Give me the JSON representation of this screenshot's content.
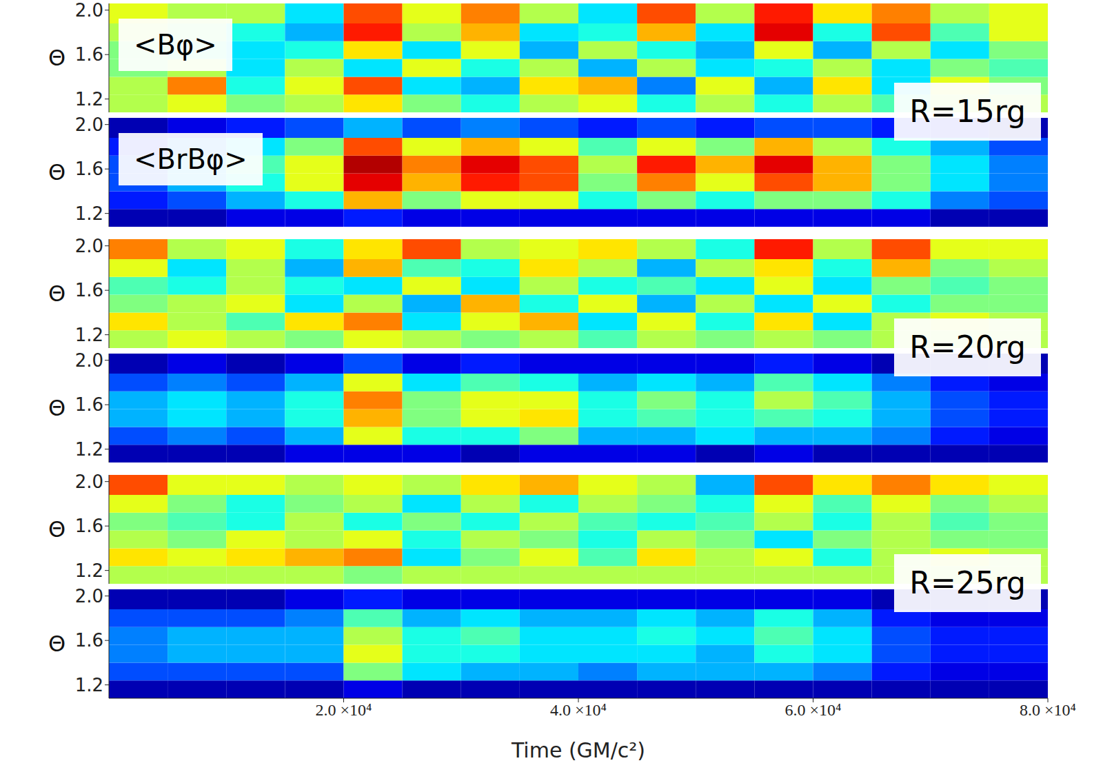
{
  "chart_data": {
    "type": "heatmap",
    "x_label": "Time (GM/c²)",
    "y_label": "Θ",
    "xlim": [
      0,
      80000
    ],
    "xticks": [
      {
        "value": 20000,
        "label": "2.0 ×10⁴"
      },
      {
        "value": 40000,
        "label": "4.0 ×10⁴"
      },
      {
        "value": 60000,
        "label": "6.0 ×10⁴"
      },
      {
        "value": 80000,
        "label": "8.0 ×10⁴"
      }
    ],
    "ylim": [
      1.08,
      2.06
    ],
    "yticks": [
      1.2,
      1.6,
      {
        "value": 2,
        "label": "2.0"
      }
    ],
    "quantity_labels": [
      "<Bφ>",
      "<BrBφ>"
    ],
    "time_edges": [
      0,
      5000,
      10000,
      15000,
      20000,
      25000,
      30000,
      35000,
      40000,
      45000,
      50000,
      55000,
      60000,
      65000,
      70000,
      75000,
      80000
    ],
    "theta_edges": [
      1.08,
      1.24,
      1.4,
      1.56,
      1.72,
      1.88,
      2.06
    ],
    "panels": [
      {
        "radius_label": "R=15rg",
        "maps": [
          {
            "crange": [
              -1,
              1
            ],
            "cells": [
              [
                0.1,
                0.2,
                0,
                0.1,
                0.3,
                0,
                -0.2,
                0.1,
                0.2,
                -0.2,
                0.1,
                -0.2,
                0.1,
                -0.1,
                0.1,
                0.1
              ],
              [
                0.1,
                0.5,
                -0.2,
                0.2,
                0.6,
                -0.3,
                -0.4,
                0.3,
                0.4,
                -0.5,
                0.2,
                -0.4,
                0.3,
                -0.3,
                0.2,
                0
              ],
              [
                0,
                0.1,
                -0.3,
                0.1,
                -0.3,
                0.2,
                -0.2,
                0.1,
                -0.4,
                0.1,
                -0.3,
                -0.2,
                0.1,
                -0.3,
                0,
                -0.1
              ],
              [
                0,
                -0.1,
                -0.3,
                -0.2,
                0.3,
                -0.3,
                0.2,
                -0.4,
                0.1,
                -0.2,
                -0.4,
                0.2,
                -0.4,
                0.1,
                -0.3,
                0
              ],
              [
                0.1,
                0,
                -0.2,
                -0.4,
                0.7,
                0.1,
                0.4,
                -0.3,
                -0.2,
                0.4,
                -0.3,
                0.8,
                -0.2,
                0.6,
                -0.1,
                0.2
              ],
              [
                0.2,
                0.1,
                0.1,
                -0.3,
                0.6,
                0.2,
                0.5,
                0.1,
                -0.3,
                0.6,
                0.1,
                0.7,
                0.3,
                0.5,
                0.1,
                0.2
              ]
            ]
          },
          {
            "crange": [
              0,
              1
            ],
            "cells": [
              [
                0.05,
                0.05,
                0.1,
                0.1,
                0.15,
                0.1,
                0.1,
                0.1,
                0.1,
                0.1,
                0.1,
                0.1,
                0.1,
                0.1,
                0.05,
                0.05
              ],
              [
                0.15,
                0.2,
                0.3,
                0.4,
                0.7,
                0.5,
                0.6,
                0.6,
                0.4,
                0.5,
                0.4,
                0.5,
                0.5,
                0.4,
                0.25,
                0.2
              ],
              [
                0.2,
                0.3,
                0.4,
                0.6,
                0.9,
                0.7,
                0.85,
                0.8,
                0.5,
                0.75,
                0.6,
                0.8,
                0.7,
                0.5,
                0.35,
                0.25
              ],
              [
                0.2,
                0.3,
                0.45,
                0.6,
                0.95,
                0.75,
                0.9,
                0.8,
                0.55,
                0.85,
                0.7,
                0.9,
                0.7,
                0.5,
                0.35,
                0.25
              ],
              [
                0.15,
                0.25,
                0.35,
                0.5,
                0.8,
                0.6,
                0.7,
                0.6,
                0.45,
                0.6,
                0.5,
                0.7,
                0.55,
                0.4,
                0.3,
                0.2
              ],
              [
                0.05,
                0.1,
                0.15,
                0.2,
                0.3,
                0.2,
                0.25,
                0.2,
                0.15,
                0.2,
                0.15,
                0.2,
                0.2,
                0.15,
                0.1,
                0.05
              ]
            ]
          }
        ]
      },
      {
        "radius_label": "R=20rg",
        "maps": [
          {
            "crange": [
              -1,
              1
            ],
            "cells": [
              [
                0.1,
                0.2,
                0.1,
                0,
                0.2,
                0.1,
                0,
                0.1,
                -0.1,
                0.1,
                0,
                0.1,
                0,
                0.1,
                0.1,
                0.1
              ],
              [
                0.3,
                0.1,
                -0.1,
                0.3,
                0.5,
                -0.3,
                0.2,
                0.4,
                -0.3,
                0.2,
                -0.2,
                0.3,
                -0.3,
                0.1,
                0.2,
                0.1
              ],
              [
                0,
                0.1,
                0.2,
                -0.3,
                0.1,
                -0.4,
                0.4,
                -0.2,
                0.2,
                -0.4,
                0.1,
                -0.3,
                0.2,
                -0.2,
                0,
                0
              ],
              [
                -0.1,
                -0.2,
                0.1,
                -0.2,
                -0.3,
                0.2,
                -0.3,
                0.1,
                -0.2,
                -0.1,
                -0.3,
                0.2,
                -0.3,
                0,
                -0.1,
                0
              ],
              [
                0.2,
                -0.3,
                0.1,
                -0.4,
                0.4,
                -0.1,
                -0.2,
                0.3,
                0.1,
                -0.4,
                0.1,
                0.3,
                -0.2,
                0.4,
                0,
                0.1
              ],
              [
                0.5,
                0.1,
                0.2,
                -0.2,
                0.3,
                0.6,
                0.1,
                0.2,
                0.3,
                0.1,
                -0.2,
                0.7,
                0.1,
                0.6,
                0.2,
                0.2
              ]
            ]
          },
          {
            "crange": [
              0,
              1
            ],
            "cells": [
              [
                0.05,
                0.05,
                0.05,
                0.1,
                0.1,
                0.1,
                0.05,
                0.1,
                0.1,
                0.1,
                0.05,
                0.1,
                0.05,
                0.05,
                0.05,
                0.05
              ],
              [
                0.2,
                0.25,
                0.2,
                0.3,
                0.6,
                0.4,
                0.4,
                0.5,
                0.3,
                0.3,
                0.35,
                0.3,
                0.3,
                0.25,
                0.15,
                0.1
              ],
              [
                0.3,
                0.35,
                0.3,
                0.4,
                0.7,
                0.5,
                0.6,
                0.65,
                0.4,
                0.45,
                0.4,
                0.45,
                0.4,
                0.3,
                0.2,
                0.15
              ],
              [
                0.3,
                0.35,
                0.3,
                0.4,
                0.75,
                0.5,
                0.6,
                0.6,
                0.4,
                0.5,
                0.4,
                0.55,
                0.45,
                0.3,
                0.2,
                0.15
              ],
              [
                0.2,
                0.25,
                0.2,
                0.3,
                0.6,
                0.35,
                0.45,
                0.4,
                0.3,
                0.35,
                0.3,
                0.45,
                0.35,
                0.25,
                0.15,
                0.1
              ],
              [
                0.05,
                0.1,
                0.05,
                0.1,
                0.2,
                0.1,
                0.15,
                0.1,
                0.1,
                0.1,
                0.1,
                0.15,
                0.1,
                0.05,
                0.05,
                0.05
              ]
            ]
          }
        ]
      },
      {
        "radius_label": "R=25rg",
        "maps": [
          {
            "crange": [
              -1,
              1
            ],
            "cells": [
              [
                0.1,
                0.1,
                0.1,
                0.1,
                0,
                0.1,
                0.1,
                0.1,
                0.1,
                0.1,
                0.1,
                0.1,
                0.1,
                0.1,
                0.1,
                0.1
              ],
              [
                0.3,
                0.2,
                0.3,
                0.4,
                0.5,
                -0.3,
                0,
                0.2,
                -0.1,
                0.3,
                0.1,
                0.2,
                -0.2,
                0.1,
                0.2,
                0.1
              ],
              [
                0.1,
                0,
                0.2,
                0.1,
                0.2,
                -0.2,
                0.1,
                0,
                -0.2,
                0.1,
                0,
                -0.3,
                0,
                0.1,
                0,
                0
              ],
              [
                0,
                -0.1,
                -0.2,
                0.1,
                -0.2,
                0,
                -0.2,
                0.1,
                -0.1,
                -0.2,
                -0.1,
                0.1,
                -0.2,
                0.1,
                -0.1,
                0
              ],
              [
                0.2,
                0,
                -0.2,
                0,
                0.1,
                -0.3,
                0.1,
                -0.2,
                0.1,
                0,
                -0.2,
                0.2,
                -0.1,
                0.2,
                0,
                0.1
              ],
              [
                0.6,
                0.2,
                0.2,
                0.1,
                0.2,
                0.1,
                0.3,
                0.4,
                0.2,
                0.1,
                -0.4,
                0.6,
                0.3,
                0.5,
                0.3,
                0.2
              ]
            ]
          },
          {
            "crange": [
              0,
              1
            ],
            "cells": [
              [
                0.05,
                0.05,
                0.05,
                0.05,
                0.1,
                0.05,
                0.05,
                0.05,
                0.05,
                0.05,
                0.05,
                0.05,
                0.05,
                0.05,
                0.05,
                0.05
              ],
              [
                0.2,
                0.2,
                0.2,
                0.2,
                0.5,
                0.35,
                0.3,
                0.3,
                0.25,
                0.3,
                0.3,
                0.3,
                0.25,
                0.15,
                0.1,
                0.1
              ],
              [
                0.25,
                0.3,
                0.3,
                0.3,
                0.6,
                0.4,
                0.4,
                0.35,
                0.35,
                0.35,
                0.3,
                0.4,
                0.35,
                0.2,
                0.15,
                0.15
              ],
              [
                0.25,
                0.3,
                0.3,
                0.3,
                0.55,
                0.4,
                0.45,
                0.35,
                0.35,
                0.4,
                0.35,
                0.45,
                0.35,
                0.2,
                0.15,
                0.15
              ],
              [
                0.2,
                0.2,
                0.2,
                0.25,
                0.45,
                0.3,
                0.35,
                0.3,
                0.3,
                0.35,
                0.3,
                0.4,
                0.3,
                0.15,
                0.1,
                0.1
              ],
              [
                0.05,
                0.05,
                0.05,
                0.1,
                0.15,
                0.1,
                0.1,
                0.1,
                0.1,
                0.1,
                0.1,
                0.1,
                0.1,
                0.05,
                0.05,
                0.05
              ]
            ]
          }
        ]
      }
    ]
  }
}
